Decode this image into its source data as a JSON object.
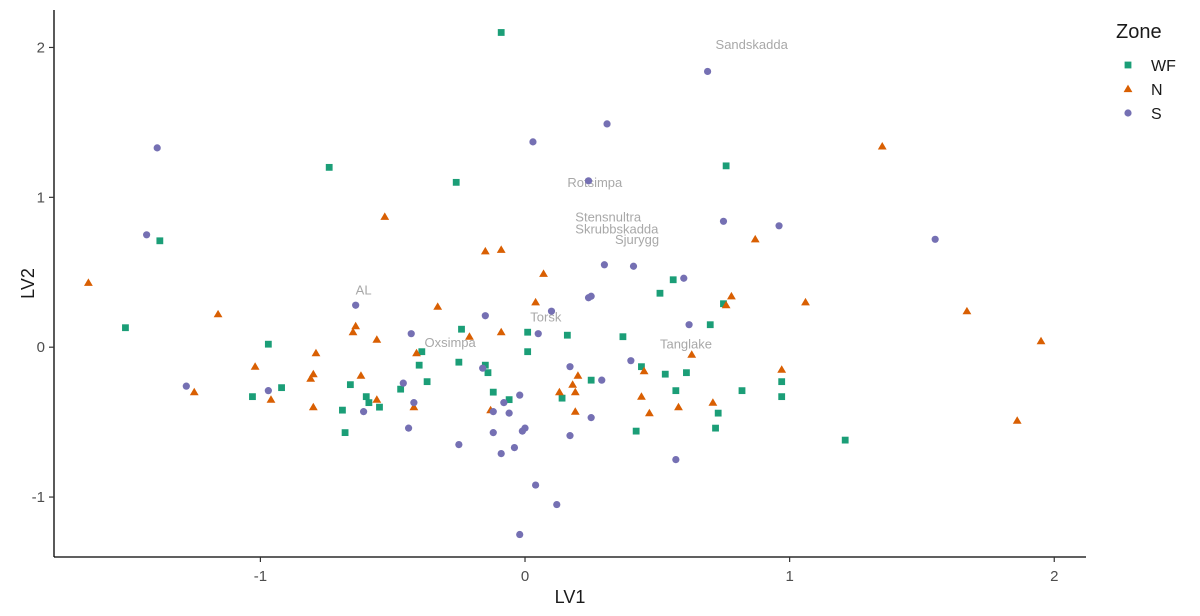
{
  "chart_data": {
    "type": "scatter",
    "title": "",
    "xlabel": "LV1",
    "ylabel": "LV2",
    "xlim": [
      -1.78,
      2.12
    ],
    "ylim": [
      -1.4,
      2.25
    ],
    "xticks": [
      -1,
      0,
      1,
      2
    ],
    "xtick_labels": [
      "-1",
      "0",
      "1",
      "2"
    ],
    "yticks": [
      -1,
      0,
      1,
      2
    ],
    "ytick_labels": [
      "-1",
      "0",
      "1",
      "2"
    ],
    "grid": false,
    "legend": {
      "title": "Zone",
      "placement": "right",
      "entries": [
        {
          "label": "WF",
          "color": "#1b9e77",
          "shape": "square"
        },
        {
          "label": "N",
          "color": "#d95f02",
          "shape": "triangle"
        },
        {
          "label": "S",
          "color": "#7570b3",
          "shape": "circle"
        }
      ]
    },
    "series": [
      {
        "name": "WF",
        "color": "#1b9e77",
        "marker": "square",
        "points": [
          [
            -0.09,
            2.1
          ],
          [
            -0.74,
            1.2
          ],
          [
            -0.26,
            1.1
          ],
          [
            0.76,
            1.21
          ],
          [
            -1.38,
            0.71
          ],
          [
            -1.51,
            0.13
          ],
          [
            0.56,
            0.45
          ],
          [
            0.51,
            0.36
          ],
          [
            0.7,
            0.15
          ],
          [
            0.75,
            0.29
          ],
          [
            -0.97,
            0.02
          ],
          [
            -0.24,
            0.12
          ],
          [
            0.01,
            0.1
          ],
          [
            0.16,
            0.08
          ],
          [
            0.37,
            0.07
          ],
          [
            0.01,
            -0.03
          ],
          [
            -0.39,
            -0.03
          ],
          [
            -0.4,
            -0.12
          ],
          [
            -0.25,
            -0.1
          ],
          [
            -0.15,
            -0.12
          ],
          [
            -0.14,
            -0.17
          ],
          [
            -0.37,
            -0.23
          ],
          [
            -0.66,
            -0.25
          ],
          [
            -0.92,
            -0.27
          ],
          [
            -1.03,
            -0.33
          ],
          [
            -0.47,
            -0.28
          ],
          [
            -0.12,
            -0.3
          ],
          [
            -0.6,
            -0.33
          ],
          [
            -0.59,
            -0.37
          ],
          [
            -0.55,
            -0.4
          ],
          [
            -0.69,
            -0.42
          ],
          [
            -0.68,
            -0.57
          ],
          [
            -0.06,
            -0.35
          ],
          [
            0.14,
            -0.34
          ],
          [
            0.25,
            -0.22
          ],
          [
            0.44,
            -0.13
          ],
          [
            0.53,
            -0.18
          ],
          [
            0.61,
            -0.17
          ],
          [
            0.57,
            -0.29
          ],
          [
            0.82,
            -0.29
          ],
          [
            0.97,
            -0.23
          ],
          [
            0.97,
            -0.33
          ],
          [
            0.73,
            -0.44
          ],
          [
            0.72,
            -0.54
          ],
          [
            0.42,
            -0.56
          ],
          [
            1.21,
            -0.62
          ]
        ]
      },
      {
        "name": "N",
        "color": "#d95f02",
        "marker": "triangle",
        "points": [
          [
            1.35,
            1.34
          ],
          [
            -0.53,
            0.87
          ],
          [
            -0.09,
            0.65
          ],
          [
            -0.15,
            0.64
          ],
          [
            0.87,
            0.72
          ],
          [
            0.07,
            0.49
          ],
          [
            -1.65,
            0.43
          ],
          [
            -1.16,
            0.22
          ],
          [
            -0.33,
            0.27
          ],
          [
            0.04,
            0.3
          ],
          [
            0.76,
            0.28
          ],
          [
            0.78,
            0.34
          ],
          [
            1.06,
            0.3
          ],
          [
            1.67,
            0.24
          ],
          [
            1.95,
            0.04
          ],
          [
            -0.64,
            0.14
          ],
          [
            -0.65,
            0.1
          ],
          [
            -0.56,
            0.05
          ],
          [
            -0.21,
            0.07
          ],
          [
            -0.09,
            0.1
          ],
          [
            -0.79,
            -0.04
          ],
          [
            -0.41,
            -0.04
          ],
          [
            -1.02,
            -0.13
          ],
          [
            -0.8,
            -0.18
          ],
          [
            -0.81,
            -0.21
          ],
          [
            -0.62,
            -0.19
          ],
          [
            -1.25,
            -0.3
          ],
          [
            -0.96,
            -0.35
          ],
          [
            -0.56,
            -0.35
          ],
          [
            -0.42,
            -0.4
          ],
          [
            -0.8,
            -0.4
          ],
          [
            -0.13,
            -0.42
          ],
          [
            0.13,
            -0.3
          ],
          [
            0.19,
            -0.3
          ],
          [
            0.18,
            -0.25
          ],
          [
            0.2,
            -0.19
          ],
          [
            0.45,
            -0.16
          ],
          [
            0.63,
            -0.05
          ],
          [
            0.58,
            -0.4
          ],
          [
            0.71,
            -0.37
          ],
          [
            0.97,
            -0.15
          ],
          [
            0.44,
            -0.33
          ],
          [
            0.47,
            -0.44
          ],
          [
            0.19,
            -0.43
          ],
          [
            1.86,
            -0.49
          ]
        ]
      },
      {
        "name": "S",
        "color": "#7570b3",
        "marker": "circle",
        "points": [
          [
            0.69,
            1.84
          ],
          [
            0.31,
            1.49
          ],
          [
            0.03,
            1.37
          ],
          [
            -1.39,
            1.33
          ],
          [
            0.24,
            1.11
          ],
          [
            -1.43,
            0.75
          ],
          [
            0.75,
            0.84
          ],
          [
            0.96,
            0.81
          ],
          [
            1.55,
            0.72
          ],
          [
            0.3,
            0.55
          ],
          [
            0.41,
            0.54
          ],
          [
            0.6,
            0.46
          ],
          [
            0.25,
            0.34
          ],
          [
            0.24,
            0.33
          ],
          [
            0.1,
            0.24
          ],
          [
            -0.64,
            0.28
          ],
          [
            -0.15,
            0.21
          ],
          [
            0.62,
            0.15
          ],
          [
            -0.43,
            0.09
          ],
          [
            0.05,
            0.09
          ],
          [
            -0.16,
            -0.14
          ],
          [
            0.17,
            -0.13
          ],
          [
            0.4,
            -0.09
          ],
          [
            0.29,
            -0.22
          ],
          [
            -1.28,
            -0.26
          ],
          [
            -0.97,
            -0.29
          ],
          [
            -0.46,
            -0.24
          ],
          [
            -0.42,
            -0.37
          ],
          [
            -0.44,
            -0.54
          ],
          [
            -0.61,
            -0.43
          ],
          [
            -0.08,
            -0.37
          ],
          [
            -0.02,
            -0.32
          ],
          [
            -0.06,
            -0.44
          ],
          [
            -0.01,
            -0.56
          ],
          [
            -0.12,
            -0.43
          ],
          [
            0.0,
            -0.54
          ],
          [
            -0.12,
            -0.57
          ],
          [
            -0.04,
            -0.67
          ],
          [
            -0.09,
            -0.71
          ],
          [
            -0.25,
            -0.65
          ],
          [
            0.25,
            -0.47
          ],
          [
            0.17,
            -0.59
          ],
          [
            0.57,
            -0.75
          ],
          [
            0.04,
            -0.92
          ],
          [
            0.12,
            -1.05
          ],
          [
            -0.02,
            -1.25
          ]
        ]
      }
    ],
    "annotations": [
      {
        "text": "Sandskadda",
        "x": 0.72,
        "y": 1.99
      },
      {
        "text": "Rotsimpa",
        "x": 0.16,
        "y": 1.07
      },
      {
        "text": "Stensnultra",
        "x": 0.19,
        "y": 0.84
      },
      {
        "text": "Skrubbskadda",
        "x": 0.19,
        "y": 0.76
      },
      {
        "text": "Sjurygg",
        "x": 0.34,
        "y": 0.69
      },
      {
        "text": "AL",
        "x": -0.64,
        "y": 0.35
      },
      {
        "text": "Torsk",
        "x": 0.02,
        "y": 0.17
      },
      {
        "text": "Oxsimpa",
        "x": -0.38,
        "y": 0.0
      },
      {
        "text": "Tanglake",
        "x": 0.51,
        "y": -0.01
      }
    ]
  }
}
